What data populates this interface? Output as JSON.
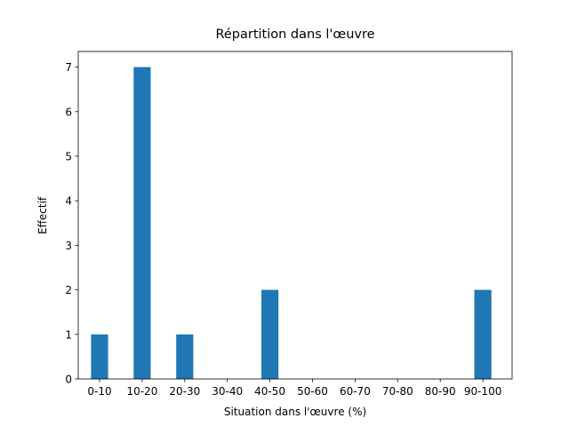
{
  "chart_data": {
    "type": "bar",
    "title": "Répartition dans l'œuvre",
    "xlabel": "Situation dans l'œuvre (%)",
    "ylabel": "Effectif",
    "categories": [
      "0-10",
      "10-20",
      "20-30",
      "30-40",
      "40-50",
      "50-60",
      "60-70",
      "70-80",
      "80-90",
      "90-100"
    ],
    "values": [
      1,
      7,
      1,
      0,
      2,
      0,
      0,
      0,
      0,
      2
    ],
    "color": "#1f77b4",
    "ylim": [
      0,
      7.35
    ],
    "yticks": [
      0,
      1,
      2,
      3,
      4,
      5,
      6,
      7
    ],
    "grid": false
  }
}
